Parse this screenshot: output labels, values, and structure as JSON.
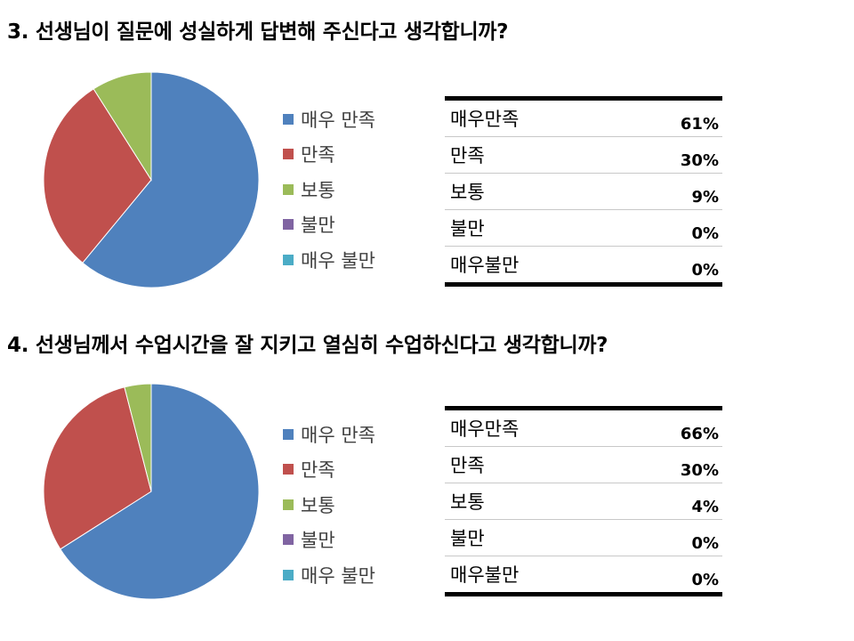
{
  "chart_data": [
    {
      "type": "pie",
      "title": "3. 선생님이 질문에 성실하게 답변해 주신다고 생각합니까?",
      "categories": [
        "매우 만족",
        "만족",
        "보통",
        "불만",
        "매우 불만"
      ],
      "values": [
        61,
        30,
        9,
        0,
        0
      ],
      "colors": [
        "#4f81bd",
        "#c0504d",
        "#9bbb59",
        "#8064a2",
        "#4bacc6"
      ],
      "legend_position": "right",
      "table": {
        "labels": [
          "매우만족",
          "만족",
          "보통",
          "불만",
          "매우불만"
        ],
        "percents": [
          "61%",
          "30%",
          "9%",
          "0%",
          "0%"
        ]
      }
    },
    {
      "type": "pie",
      "title": "4. 선생님께서 수업시간을 잘 지키고 열심히 수업하신다고 생각합니까?",
      "categories": [
        "매우 만족",
        "만족",
        "보통",
        "불만",
        "매우 불만"
      ],
      "values": [
        66,
        30,
        4,
        0,
        0
      ],
      "colors": [
        "#4f81bd",
        "#c0504d",
        "#9bbb59",
        "#8064a2",
        "#4bacc6"
      ],
      "legend_position": "right",
      "table": {
        "labels": [
          "매우만족",
          "만족",
          "보통",
          "불만",
          "매우불만"
        ],
        "percents": [
          "66%",
          "30%",
          "4%",
          "0%",
          "0%"
        ]
      }
    }
  ]
}
